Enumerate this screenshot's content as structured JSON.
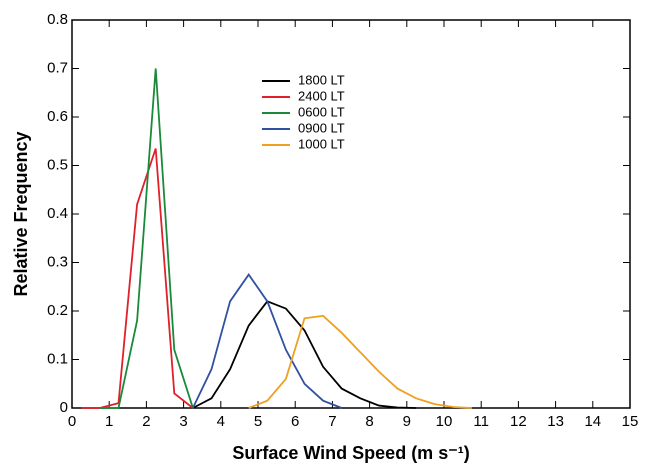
{
  "chart_data": {
    "type": "line",
    "xlabel": "Surface Wind Speed (m s⁻¹)",
    "ylabel": "Relative Frequency",
    "xlim": [
      0,
      15
    ],
    "xticks": [
      0,
      1,
      2,
      3,
      4,
      5,
      6,
      7,
      8,
      9,
      10,
      11,
      12,
      13,
      14,
      15
    ],
    "ylim": [
      0,
      0.8
    ],
    "yticks": [
      0,
      0.1,
      0.2,
      0.3,
      0.4,
      0.5,
      0.6,
      0.7,
      0.8
    ],
    "series": [
      {
        "name": "1800 LT",
        "color": "#000000",
        "x": [
          3.25,
          3.75,
          4.25,
          4.75,
          5.25,
          5.75,
          6.25,
          6.75,
          7.25,
          7.75,
          8.25,
          8.75,
          9.25
        ],
        "values": [
          0,
          0.02,
          0.08,
          0.17,
          0.22,
          0.205,
          0.16,
          0.085,
          0.04,
          0.02,
          0.005,
          0.001,
          0
        ]
      },
      {
        "name": "2400 LT",
        "color": "#e0202a",
        "x": [
          0.25,
          0.75,
          1.25,
          1.75,
          2.25,
          2.75,
          3.25
        ],
        "values": [
          0,
          0,
          0.01,
          0.42,
          0.535,
          0.03,
          0
        ]
      },
      {
        "name": "0600 LT",
        "color": "#1a8a3a",
        "x": [
          0.75,
          1.25,
          1.75,
          2.25,
          2.75,
          3.25
        ],
        "values": [
          0,
          0,
          0.18,
          0.7,
          0.12,
          0
        ]
      },
      {
        "name": "0900 LT",
        "color": "#3050a0",
        "x": [
          3.25,
          3.75,
          4.25,
          4.75,
          5.25,
          5.75,
          6.25,
          6.75,
          7.25
        ],
        "values": [
          0,
          0.08,
          0.22,
          0.275,
          0.22,
          0.12,
          0.05,
          0.015,
          0
        ]
      },
      {
        "name": "1000 LT",
        "color": "#f0a020",
        "x": [
          4.75,
          5.25,
          5.75,
          6.25,
          6.75,
          7.25,
          7.75,
          8.25,
          8.75,
          9.25,
          9.75,
          10.25,
          10.75
        ],
        "values": [
          0,
          0.015,
          0.06,
          0.185,
          0.19,
          0.155,
          0.115,
          0.075,
          0.04,
          0.02,
          0.008,
          0.002,
          0
        ]
      }
    ]
  }
}
